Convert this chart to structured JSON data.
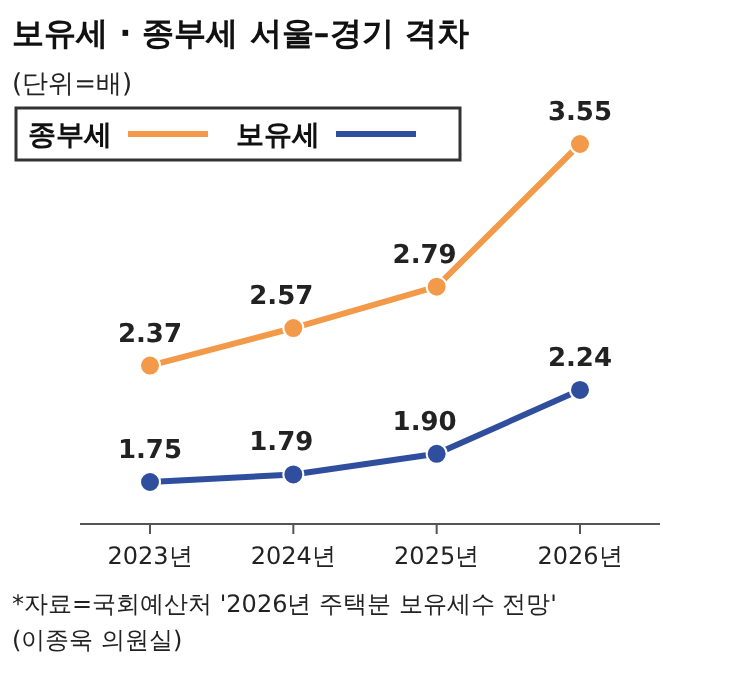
{
  "chart_data": {
    "type": "line",
    "title": "보유세 · 종부세 서울–경기 격차",
    "subtitle": "(단위=배)",
    "categories": [
      "2023년",
      "2024년",
      "2025년",
      "2026년"
    ],
    "series": [
      {
        "name": "종부세",
        "color": "#f39a4a",
        "values": [
          2.37,
          2.57,
          2.79,
          3.55
        ],
        "value_labels": [
          "2.37",
          "2.57",
          "2.79",
          "3.55"
        ]
      },
      {
        "name": "보유세",
        "color": "#2f4f9e",
        "values": [
          1.75,
          1.79,
          1.9,
          2.24
        ],
        "value_labels": [
          "1.75",
          "1.79",
          "1.90",
          "2.24"
        ]
      }
    ],
    "marker": "circle",
    "legend": "top left",
    "annotations": [
      "*자료=국회예산처 '2026년 주택분 보유세수 전망'",
      "(이종욱 의원실)"
    ]
  }
}
